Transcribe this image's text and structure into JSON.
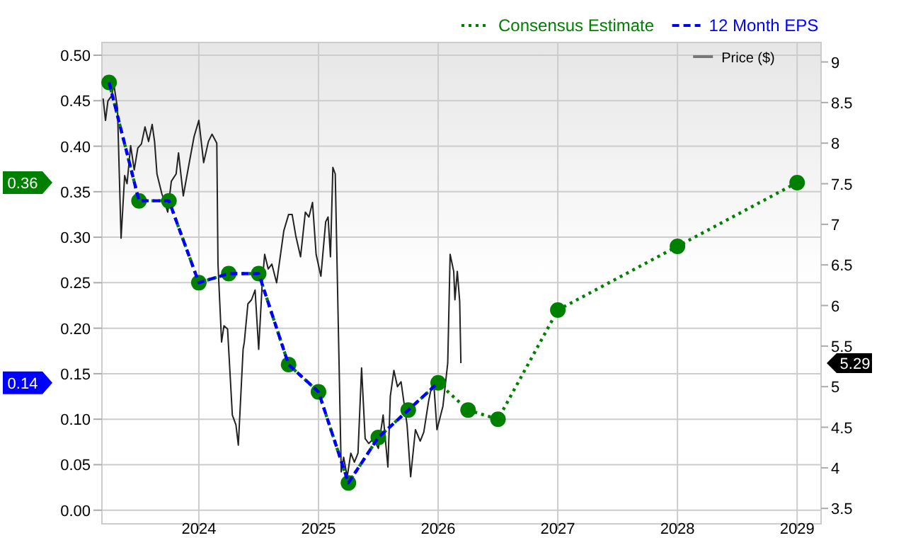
{
  "chart_data": {
    "type": "line",
    "xlim": [
      2023.19,
      2029.2
    ],
    "xticks": [
      2024,
      2025,
      2026,
      2027,
      2028,
      2029
    ],
    "ylim": [
      -0.015,
      0.514
    ],
    "yticks": [
      {
        "value": 0,
        "label": "0.00"
      },
      {
        "value": 0.05,
        "label": "0.05"
      },
      {
        "value": 0.1,
        "label": "0.10"
      },
      {
        "value": 0.15,
        "label": "0.15"
      },
      {
        "value": 0.2,
        "label": "0.20"
      },
      {
        "value": 0.25,
        "label": "0.25"
      },
      {
        "value": 0.3,
        "label": "0.30"
      },
      {
        "value": 0.35,
        "label": "0.35"
      },
      {
        "value": 0.4,
        "label": "0.40"
      },
      {
        "value": 0.45,
        "label": "0.45"
      },
      {
        "value": 0.5,
        "label": "0.50"
      }
    ],
    "y2lim": [
      3.31,
      9.24
    ],
    "y2ticks": [
      3.5,
      4,
      4.5,
      5,
      5.5,
      6,
      6.5,
      7,
      7.5,
      8,
      8.5,
      9
    ],
    "grid": true,
    "legend": "top right",
    "series": [
      {
        "name": "Consensus Estimate",
        "color": "#008000",
        "marker": "circle",
        "line_style": "dotted",
        "x": [
          2023.25,
          2023.5,
          2023.75,
          2024.0,
          2024.25,
          2024.5,
          2024.75,
          2025.0,
          2025.25,
          2025.5,
          2025.75,
          2026.0,
          2026.25,
          2026.5,
          2027.0,
          2028.0,
          2029.0
        ],
        "values": [
          0.47,
          0.34,
          0.34,
          0.25,
          0.26,
          0.26,
          0.16,
          0.13,
          0.03,
          0.08,
          0.11,
          0.14,
          0.11,
          0.1,
          0.22,
          0.29,
          0.36
        ]
      },
      {
        "name": "12 Month EPS",
        "color": "#0000ff",
        "marker": "none",
        "line_style": "dashed",
        "x": [
          2023.25,
          2023.5,
          2023.75,
          2024.0,
          2024.25,
          2024.5,
          2024.75,
          2025.0,
          2025.25,
          2025.5,
          2025.75,
          2026.0
        ],
        "values": [
          0.47,
          0.34,
          0.34,
          0.25,
          0.26,
          0.26,
          0.16,
          0.13,
          0.03,
          0.08,
          0.11,
          0.14
        ]
      },
      {
        "name": "Price ($)",
        "color": "#222222",
        "marker": "none",
        "line_style": "solid",
        "axis": "y2",
        "x": [
          2023.2,
          2023.22,
          2023.24,
          2023.27,
          2023.29,
          2023.32,
          2023.35,
          2023.38,
          2023.4,
          2023.43,
          2023.46,
          2023.49,
          2023.52,
          2023.55,
          2023.58,
          2023.61,
          2023.63,
          2023.65,
          2023.69,
          2023.74,
          2023.77,
          2023.81,
          2023.83,
          2023.87,
          2023.92,
          2023.96,
          2024.0,
          2024.04,
          2024.08,
          2024.11,
          2024.15,
          2024.16,
          2024.19,
          2024.21,
          2024.24,
          2024.28,
          2024.31,
          2024.33,
          2024.37,
          2024.38,
          2024.41,
          2024.44,
          2024.47,
          2024.5,
          2024.53,
          2024.55,
          2024.58,
          2024.61,
          2024.65,
          2024.71,
          2024.75,
          2024.78,
          2024.81,
          2024.85,
          2024.89,
          2024.92,
          2024.95,
          2024.98,
          2025.02,
          2025.06,
          2025.08,
          2025.1,
          2025.12,
          2025.14,
          2025.19,
          2025.21,
          2025.24,
          2025.27,
          2025.3,
          2025.33,
          2025.36,
          2025.39,
          2025.42,
          2025.46,
          2025.5,
          2025.54,
          2025.58,
          2025.6,
          2025.63,
          2025.66,
          2025.69,
          2025.74,
          2025.77,
          2025.81,
          2025.85,
          2025.88,
          2025.92,
          2025.96,
          2025.99,
          2026.04,
          2026.08,
          2026.1,
          2026.13,
          2026.14,
          2026.16,
          2026.18,
          2026.19
        ],
        "values": [
          8.55,
          8.28,
          8.52,
          8.58,
          8.72,
          8.43,
          6.83,
          7.6,
          7.5,
          7.97,
          7.67,
          7.94,
          7.99,
          8.2,
          8.02,
          8.23,
          8.02,
          7.62,
          7.38,
          7.15,
          7.53,
          7.62,
          7.88,
          7.35,
          7.76,
          8.08,
          8.28,
          7.76,
          8.02,
          8.11,
          8.0,
          6.51,
          5.55,
          5.75,
          5.71,
          4.65,
          4.53,
          4.28,
          5.46,
          5.55,
          6.02,
          6.07,
          6.19,
          5.46,
          6.28,
          6.63,
          6.45,
          6.51,
          6.28,
          6.92,
          7.12,
          7.12,
          6.86,
          6.6,
          7.15,
          7.09,
          7.27,
          6.63,
          6.36,
          7.03,
          7.09,
          6.6,
          7.7,
          7.62,
          3.95,
          4.13,
          3.89,
          4.18,
          4.07,
          4.18,
          5.23,
          4.36,
          4.3,
          4.36,
          4.24,
          4.65,
          4.01,
          4.88,
          5.2,
          5.0,
          5.06,
          4.53,
          3.89,
          4.47,
          4.33,
          4.44,
          4.82,
          5.11,
          4.47,
          4.76,
          5.29,
          6.63,
          6.42,
          6.07,
          6.42,
          6.05,
          5.29
        ]
      }
    ],
    "annotations": [
      "0.36",
      "0.14",
      "5.29"
    ]
  }
}
